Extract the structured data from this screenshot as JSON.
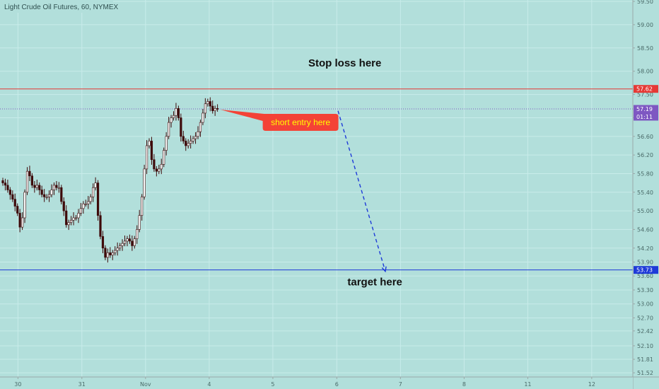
{
  "title": "Light Crude Oil Futures, 60, NYMEX",
  "colors": {
    "background": "#b2dfdb",
    "up_candle": "#ffffff",
    "down_candle": "#3e0a0a",
    "stop_line": "#e53935",
    "target_line": "#1e3ad8",
    "price_tag": "#7e57c2",
    "callout": "#f44336",
    "arrow": "#1e3ad8"
  },
  "chart_data": {
    "type": "candlestick",
    "title": "Light Crude Oil Futures, 60, NYMEX",
    "ylim": [
      51.4,
      59.5
    ],
    "yticks": [
      51.52,
      51.81,
      52.1,
      52.42,
      52.7,
      53.0,
      53.3,
      53.6,
      53.9,
      54.2,
      54.6,
      55.0,
      55.4,
      55.8,
      56.2,
      56.6,
      57.0,
      57.5,
      58.0,
      58.5,
      59.0,
      59.5
    ],
    "ytick_labels": [
      "51.52",
      "51.81",
      "52.10",
      "52.42",
      "52.70",
      "53.00",
      "53.30",
      "53.60",
      "53.90",
      "54.20",
      "54.60",
      "55.00",
      "55.40",
      "55.80",
      "56.20",
      "56.60",
      "57.00",
      "57.50",
      "58.00",
      "58.50",
      "59.00",
      "59.50"
    ],
    "xticks": [
      {
        "label": "30",
        "pos": 6.2
      },
      {
        "label": "31",
        "pos": 32.4
      },
      {
        "label": "Nov",
        "pos": 58.5
      },
      {
        "label": "4",
        "pos": 84.6
      },
      {
        "label": "5",
        "pos": 110.7
      },
      {
        "label": "6",
        "pos": 136.9
      },
      {
        "label": "7",
        "pos": 163.0
      },
      {
        "label": "8",
        "pos": 189.1
      },
      {
        "label": "11",
        "pos": 215.2
      },
      {
        "label": "12",
        "pos": 241.4
      }
    ],
    "closes": [
      55.6,
      55.55,
      55.45,
      55.35,
      55.25,
      55.1,
      54.95,
      54.65,
      54.85,
      55.4,
      55.85,
      55.75,
      55.55,
      55.5,
      55.55,
      55.45,
      55.35,
      55.3,
      55.3,
      55.35,
      55.45,
      55.55,
      55.5,
      55.5,
      55.2,
      55.0,
      54.7,
      54.75,
      54.8,
      54.85,
      54.85,
      54.95,
      55.05,
      55.15,
      55.15,
      55.2,
      55.3,
      55.5,
      55.6,
      54.9,
      54.45,
      54.2,
      54.0,
      54.1,
      54.05,
      54.1,
      54.15,
      54.2,
      54.25,
      54.3,
      54.35,
      54.4,
      54.35,
      54.25,
      54.4,
      54.6,
      54.9,
      55.3,
      55.9,
      56.4,
      56.5,
      56.1,
      55.9,
      55.85,
      55.9,
      56.0,
      56.3,
      56.6,
      56.9,
      57.0,
      57.05,
      57.2,
      57.0,
      56.6,
      56.5,
      56.4,
      56.45,
      56.5,
      56.55,
      56.6,
      56.7,
      56.9,
      57.1,
      57.3,
      57.35,
      57.25,
      57.15,
      57.2,
      57.19
    ],
    "horizontal_lines": [
      {
        "price": 57.62,
        "label": "57.62",
        "color": "#e53935"
      },
      {
        "price": 53.73,
        "label": "53.73",
        "color": "#1e3ad8"
      }
    ],
    "current_price": {
      "value": "57.19",
      "countdown": "01:11"
    },
    "annotations": [
      {
        "text": "Stop loss here",
        "pos": 140.2,
        "price": 58.1
      },
      {
        "text": "target here",
        "pos": 152.5,
        "price": 53.4
      }
    ],
    "callout": {
      "text": "short entry here"
    },
    "arrow": {
      "from": {
        "pos": 137.4,
        "price": 57.15
      },
      "to": {
        "pos": 156.8,
        "price": 53.7
      }
    }
  }
}
